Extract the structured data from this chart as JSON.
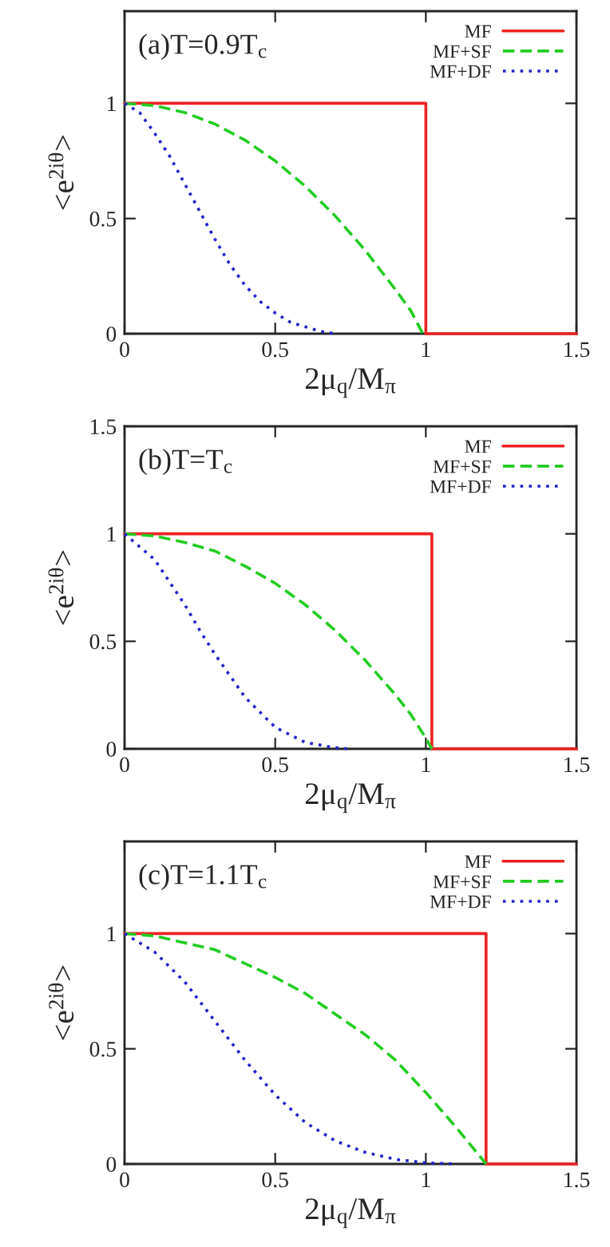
{
  "chart_data": [
    {
      "type": "line",
      "xlabel": "2μ$_{q}$/M$_{π}$",
      "ylabel": "<e$^{2iθ}$>",
      "annotations": [
        "(a)T=0.9T$_{c}$"
      ],
      "xlim": [
        0,
        1.5
      ],
      "xticks": [
        0,
        0.5,
        1,
        1.5
      ],
      "ylim": [
        0,
        1.4
      ],
      "yticks": [
        0,
        0.5,
        1
      ],
      "legend": "top right",
      "series": [
        {
          "name": "MF",
          "color": "#ee2222",
          "line_style": "solid",
          "x": [
            0,
            1.0,
            1.0,
            1.5
          ],
          "values": [
            1,
            1,
            0,
            0
          ]
        },
        {
          "name": "MF+SF",
          "color": "#22cc22",
          "line_style": "dashed",
          "x": [
            0,
            0.1,
            0.2,
            0.3,
            0.4,
            0.5,
            0.6,
            0.7,
            0.8,
            0.9,
            0.95,
            0.99
          ],
          "values": [
            1,
            0.99,
            0.96,
            0.91,
            0.84,
            0.75,
            0.64,
            0.51,
            0.36,
            0.19,
            0.1,
            0
          ]
        },
        {
          "name": "MF+DF",
          "color": "#2222cc",
          "line_style": "dotted",
          "x": [
            0,
            0.05,
            0.1,
            0.15,
            0.2,
            0.25,
            0.3,
            0.35,
            0.4,
            0.45,
            0.5,
            0.55,
            0.6,
            0.65,
            0.7
          ],
          "values": [
            1,
            0.96,
            0.87,
            0.77,
            0.65,
            0.53,
            0.41,
            0.3,
            0.21,
            0.14,
            0.09,
            0.05,
            0.03,
            0.01,
            0
          ]
        }
      ]
    },
    {
      "type": "line",
      "xlabel": "2μ$_{q}$/M$_{π}$",
      "ylabel": "<e$^{2iθ}$>",
      "annotations": [
        "(b)T=T$_{c}$"
      ],
      "xlim": [
        0,
        1.5
      ],
      "xticks": [
        0,
        0.5,
        1,
        1.5
      ],
      "ylim": [
        0,
        1.5
      ],
      "yticks": [
        0,
        0.5,
        1,
        1.5
      ],
      "legend": "top right",
      "series": [
        {
          "name": "MF",
          "color": "#ee2222",
          "line_style": "solid",
          "x": [
            0,
            1.02,
            1.02,
            1.5
          ],
          "values": [
            1,
            1,
            0,
            0
          ]
        },
        {
          "name": "MF+SF",
          "color": "#22cc22",
          "line_style": "dashed",
          "x": [
            0,
            0.1,
            0.2,
            0.3,
            0.4,
            0.5,
            0.6,
            0.7,
            0.8,
            0.9,
            0.95,
            1.0,
            1.02
          ],
          "values": [
            1,
            0.99,
            0.96,
            0.92,
            0.85,
            0.77,
            0.67,
            0.55,
            0.41,
            0.25,
            0.16,
            0.05,
            0
          ]
        },
        {
          "name": "MF+DF",
          "color": "#2222cc",
          "line_style": "dotted",
          "x": [
            0,
            0.1,
            0.2,
            0.25,
            0.3,
            0.4,
            0.5,
            0.6,
            0.7,
            0.75
          ],
          "values": [
            1,
            0.88,
            0.67,
            0.55,
            0.44,
            0.24,
            0.1,
            0.03,
            0.005,
            0
          ]
        }
      ]
    },
    {
      "type": "line",
      "xlabel": "2μ$_{q}$/M$_{π}$",
      "ylabel": "<e$^{2iθ}$>",
      "annotations": [
        "(c)T=1.1T$_{c}$"
      ],
      "xlim": [
        0,
        1.5
      ],
      "xticks": [
        0,
        0.5,
        1,
        1.5
      ],
      "ylim": [
        0,
        1.4
      ],
      "yticks": [
        0,
        0.5,
        1
      ],
      "legend": "top right",
      "series": [
        {
          "name": "MF",
          "color": "#ee2222",
          "line_style": "solid",
          "x": [
            0,
            1.2,
            1.2,
            1.5
          ],
          "values": [
            1,
            1,
            0,
            0
          ]
        },
        {
          "name": "MF+SF",
          "color": "#22cc22",
          "line_style": "dashed",
          "x": [
            0,
            0.1,
            0.2,
            0.3,
            0.4,
            0.5,
            0.6,
            0.7,
            0.8,
            0.9,
            1.0,
            1.1,
            1.15,
            1.2
          ],
          "values": [
            1,
            0.99,
            0.96,
            0.93,
            0.87,
            0.81,
            0.74,
            0.65,
            0.56,
            0.45,
            0.31,
            0.16,
            0.08,
            0
          ]
        },
        {
          "name": "MF+DF",
          "color": "#2222cc",
          "line_style": "dotted",
          "x": [
            0,
            0.1,
            0.2,
            0.3,
            0.4,
            0.5,
            0.6,
            0.7,
            0.8,
            0.9,
            1.0,
            1.1
          ],
          "values": [
            1,
            0.92,
            0.79,
            0.62,
            0.45,
            0.3,
            0.18,
            0.1,
            0.05,
            0.02,
            0.005,
            0
          ]
        }
      ]
    }
  ]
}
